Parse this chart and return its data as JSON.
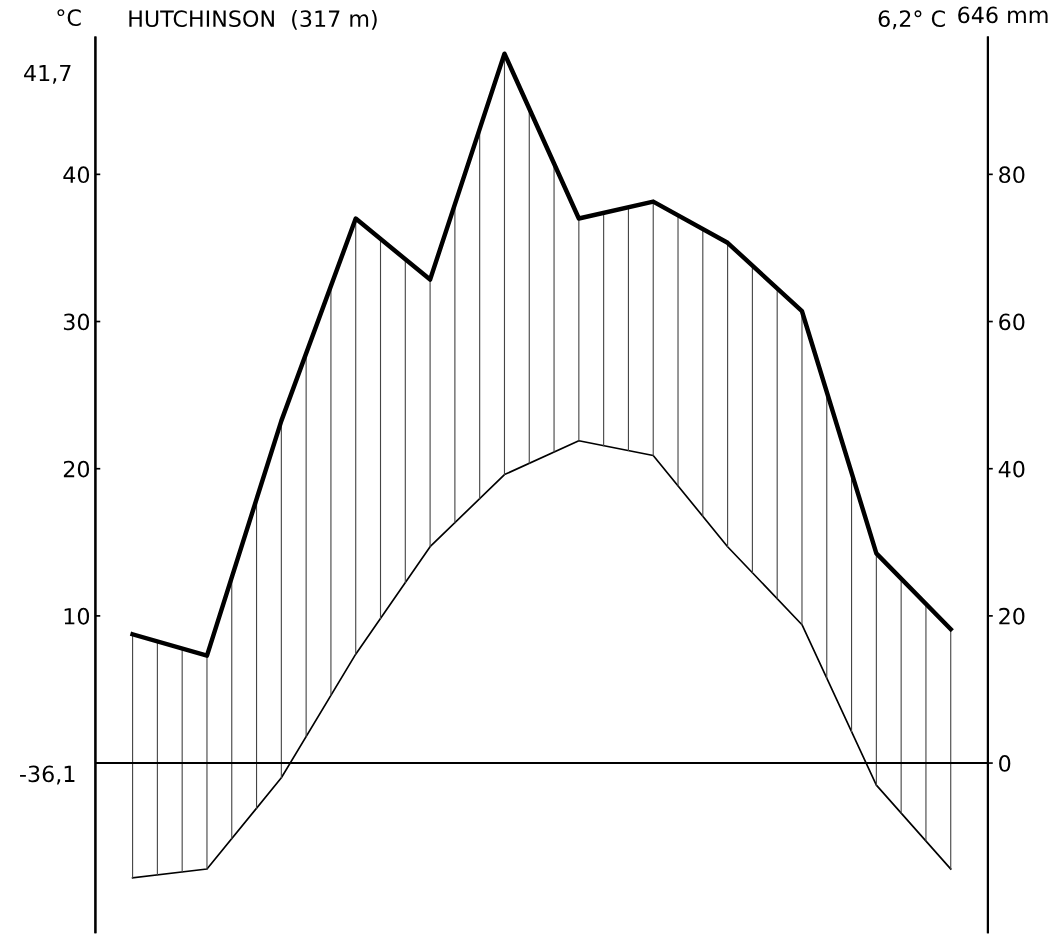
{
  "chart_data": {
    "type": "line",
    "title": "HUTCHINSON  (317 m)",
    "ylabel": "°C",
    "categories": [
      null,
      null,
      null,
      null,
      null,
      null,
      null,
      null,
      null,
      null,
      null,
      null
    ],
    "series": [
      {
        "color": "#000000",
        "values": [
          -7.8,
          -7.2,
          -1.0,
          7.4,
          14.7,
          19.6,
          21.9,
          20.9,
          14.7,
          9.4,
          -1.5,
          -7.2
        ]
      },
      {
        "color": "#000000",
        "axis": "y2",
        "values": [
          17.5,
          14.6,
          46.5,
          74,
          65.7,
          96.4,
          74,
          76.3,
          70.7,
          61.4,
          28.5,
          18.2
        ]
      }
    ],
    "ylim": [
      -11.5,
      49.3
    ],
    "yticks": [
      10,
      20,
      30,
      40
    ],
    "y2lim": [
      -23,
      98.6
    ],
    "y2ticks": [
      0,
      20,
      40,
      60,
      80
    ],
    "ref_lines": [
      {
        "axis": "y",
        "value": 0,
        "color": "#000000"
      }
    ],
    "annotations": [
      "41,7",
      "-36,1",
      "6,2° C",
      "646 mm"
    ],
    "grid": false,
    "legend": false,
    "marker": "none",
    "line_style": "solid"
  }
}
